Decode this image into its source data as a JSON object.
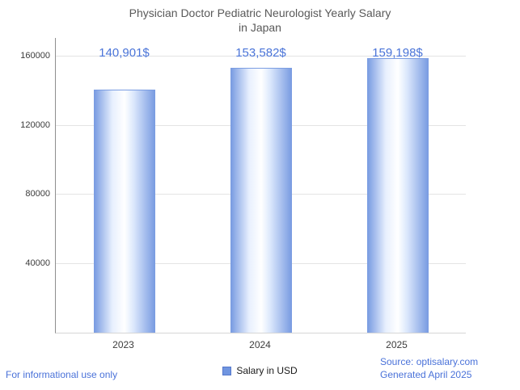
{
  "header": {
    "title_line1": "Physician Doctor Pediatric Neurologist Yearly Salary",
    "title_line2": "in Japan"
  },
  "chart_data": {
    "type": "bar",
    "title": "Physician Doctor Pediatric Neurologist Yearly Salary in Japan",
    "categories": [
      "2023",
      "2024",
      "2025"
    ],
    "values": [
      140901,
      153582,
      159198
    ],
    "value_labels": [
      "140,901$",
      "153,582$",
      "159,198$"
    ],
    "xlabel": "",
    "ylabel": "",
    "ylim": [
      0,
      160000
    ],
    "yticks": [
      40000,
      80000,
      120000,
      160000
    ],
    "grid": true,
    "legend": {
      "label": "Salary in USD",
      "position": "bottom-center"
    },
    "bar_color": "#7b9de2",
    "bar_highlight": "#ffffff",
    "value_label_color": "#4a74d8"
  },
  "footer": {
    "left": "For informational use only",
    "source": "Source: optisalary.com",
    "generated": "Generated April 2025"
  }
}
